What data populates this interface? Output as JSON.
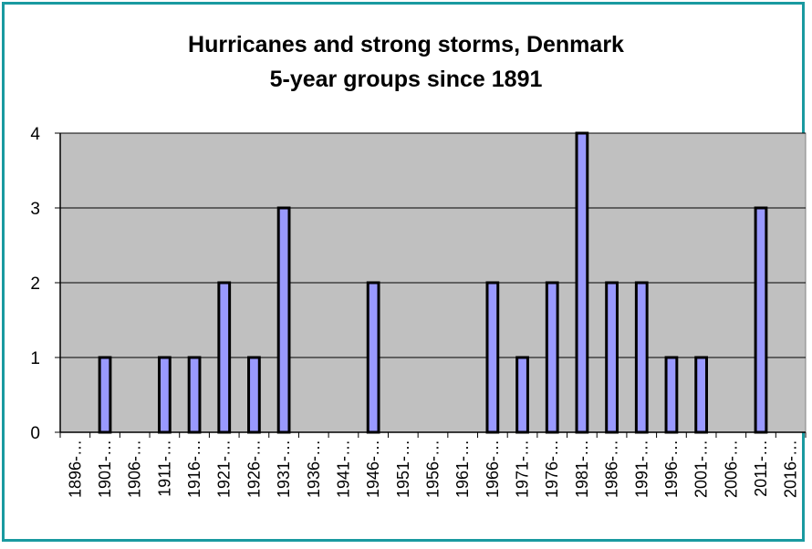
{
  "colors": {
    "frame": "#1a9aa0",
    "plot_bg": "#c0c0c0",
    "bar": "#9999ff",
    "bar_edge": "#000000"
  },
  "chart_data": {
    "type": "bar",
    "title": [
      "Hurricanes and strong storms, Denmark",
      "5-year groups since 1891"
    ],
    "xlabel": "",
    "ylabel": "",
    "categories": [
      "1896-…",
      "1901-…",
      "1906-…",
      "1911-…",
      "1916-…",
      "1921-…",
      "1926-…",
      "1931-…",
      "1936-…",
      "1941-…",
      "1946-…",
      "1951-…",
      "1956-…",
      "1961-…",
      "1966-…",
      "1971-…",
      "1976-…",
      "1981-…",
      "1986-…",
      "1991-…",
      "1996-…",
      "2001-…",
      "2006-…",
      "2011-…",
      "2016-…"
    ],
    "values": [
      0,
      1,
      0,
      1,
      1,
      2,
      1,
      3,
      0,
      0,
      2,
      0,
      0,
      0,
      2,
      1,
      2,
      4,
      2,
      2,
      1,
      1,
      0,
      3,
      0
    ],
    "ylim": [
      0,
      4
    ],
    "yticks": [
      "0",
      "1",
      "2",
      "3",
      "4"
    ],
    "grid": true,
    "legend": "none"
  }
}
